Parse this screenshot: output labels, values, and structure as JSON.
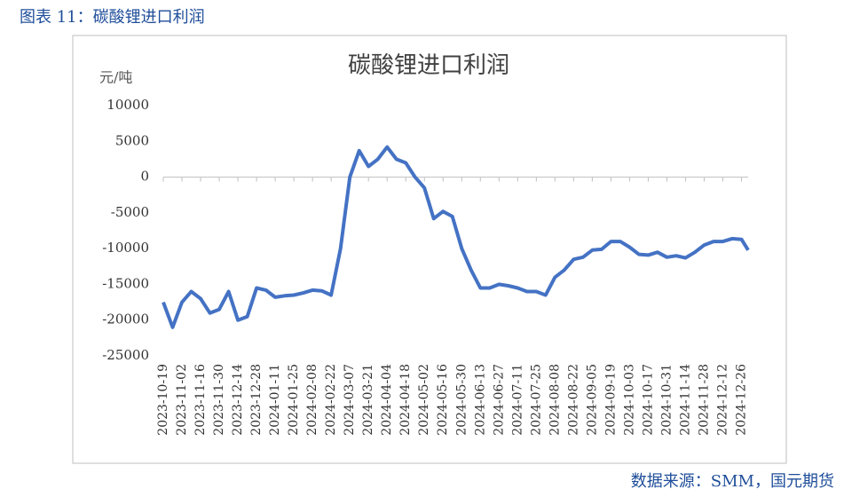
{
  "caption": "图表 11：碳酸锂进口利润",
  "source": "数据来源：SMM，国元期货",
  "chart_data": {
    "type": "line",
    "title": "碳酸锂进口利润",
    "y_label": "元/吨",
    "x": [
      "2023-10-19",
      "2023-10-26",
      "2023-11-02",
      "2023-11-09",
      "2023-11-16",
      "2023-11-23",
      "2023-11-30",
      "2023-12-07",
      "2023-12-14",
      "2023-12-21",
      "2023-12-28",
      "2024-01-04",
      "2024-01-11",
      "2024-01-18",
      "2024-01-25",
      "2024-02-01",
      "2024-02-08",
      "2024-02-15",
      "2024-02-22",
      "2024-02-29",
      "2024-03-07",
      "2024-03-14",
      "2024-03-21",
      "2024-03-28",
      "2024-04-04",
      "2024-04-11",
      "2024-04-18",
      "2024-04-25",
      "2024-05-02",
      "2024-05-09",
      "2024-05-16",
      "2024-05-23",
      "2024-05-30",
      "2024-06-06",
      "2024-06-13",
      "2024-06-20",
      "2024-06-27",
      "2024-07-04",
      "2024-07-11",
      "2024-07-18",
      "2024-07-25",
      "2024-08-01",
      "2024-08-08",
      "2024-08-15",
      "2024-08-22",
      "2024-08-29",
      "2024-09-05",
      "2024-09-12",
      "2024-09-19",
      "2024-09-26",
      "2024-10-03",
      "2024-10-10",
      "2024-10-17",
      "2024-10-24",
      "2024-10-31",
      "2024-11-07",
      "2024-11-14",
      "2024-11-21",
      "2024-11-28",
      "2024-12-05",
      "2024-12-12",
      "2024-12-19",
      "2024-12-26",
      "2024-12-31"
    ],
    "series": [
      {
        "name": "碳酸锂进口利润",
        "color": "#4472c4",
        "values": [
          -17500,
          -21000,
          -17500,
          -16000,
          -17000,
          -19000,
          -18500,
          -16000,
          -20000,
          -19500,
          -15500,
          -15800,
          -16800,
          -16600,
          -16500,
          -16200,
          -15800,
          -15900,
          -16500,
          -10000,
          0,
          3700,
          1500,
          2500,
          4200,
          2500,
          2000,
          0,
          -1500,
          -5800,
          -4800,
          -5500,
          -10000,
          -13000,
          -15500,
          -15500,
          -15000,
          -15200,
          -15500,
          -16000,
          -16000,
          -16500,
          -14000,
          -13000,
          -11500,
          -11200,
          -10200,
          -10100,
          -9000,
          -9000,
          -9800,
          -10800,
          -10900,
          -10500,
          -11200,
          -11000,
          -11300,
          -10500,
          -9500,
          -9000,
          -9000,
          -8600,
          -8700,
          -10200
        ]
      }
    ],
    "xlim": [
      "2023-10-19",
      "2024-12-31"
    ],
    "xticks": [
      "2023-10-19",
      "2023-11-02",
      "2023-11-16",
      "2023-11-30",
      "2023-12-14",
      "2023-12-28",
      "2024-01-11",
      "2024-01-25",
      "2024-02-08",
      "2024-02-22",
      "2024-03-07",
      "2024-03-21",
      "2024-04-04",
      "2024-04-18",
      "2024-05-02",
      "2024-05-16",
      "2024-05-30",
      "2024-06-13",
      "2024-06-27",
      "2024-07-11",
      "2024-07-25",
      "2024-08-08",
      "2024-08-22",
      "2024-09-05",
      "2024-09-19",
      "2024-10-03",
      "2024-10-17",
      "2024-10-31",
      "2024-11-14",
      "2024-11-28",
      "2024-12-12",
      "2024-12-26"
    ],
    "ylim": [
      -25000,
      10000
    ],
    "yticks": [
      -25000,
      -20000,
      -15000,
      -10000,
      -5000,
      0,
      5000,
      10000
    ],
    "grid": false
  }
}
